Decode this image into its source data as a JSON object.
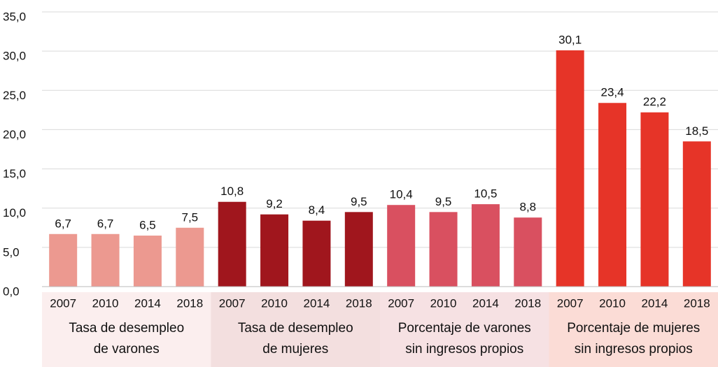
{
  "chart_data": {
    "type": "bar",
    "categories": [
      "2007",
      "2010",
      "2014",
      "2018"
    ],
    "series": [
      {
        "name": "Tasa de desempleo\nde varones",
        "color": "#ec9990",
        "background": "#fbeeee",
        "values": [
          6.7,
          6.7,
          6.5,
          7.5
        ],
        "value_labels": [
          "6,7",
          "6,7",
          "6,5",
          "7,5"
        ]
      },
      {
        "name": "Tasa de desempleo\nde mujeres",
        "color": "#a0161d",
        "background": "#f3dfdf",
        "values": [
          10.8,
          9.2,
          8.4,
          9.5
        ],
        "value_labels": [
          "10,8",
          "9,2",
          "8,4",
          "9,5"
        ]
      },
      {
        "name": "Porcentaje de varones\nsin ingresos propios",
        "color": "#d95060",
        "background": "#f6e1e3",
        "values": [
          10.4,
          9.5,
          10.5,
          8.8
        ],
        "value_labels": [
          "10,4",
          "9,5",
          "10,5",
          "8,8"
        ]
      },
      {
        "name": "Porcentaje de mujeres\nsin ingresos propios",
        "color": "#e63428",
        "background": "#fbdcd6",
        "values": [
          30.1,
          23.4,
          22.2,
          18.5
        ],
        "value_labels": [
          "30,1",
          "23,4",
          "22,2",
          "18,5"
        ]
      }
    ],
    "ylim": [
      0,
      35
    ],
    "yticks": [
      {
        "value": 0,
        "label": "0,0"
      },
      {
        "value": 5,
        "label": "5,0"
      },
      {
        "value": 10,
        "label": "10,0"
      },
      {
        "value": 15,
        "label": "15,0"
      },
      {
        "value": 20,
        "label": "20,0"
      },
      {
        "value": 25,
        "label": "25,0"
      },
      {
        "value": 30,
        "label": "30,0"
      },
      {
        "value": 35,
        "label": "35,0"
      }
    ],
    "grid": true
  }
}
